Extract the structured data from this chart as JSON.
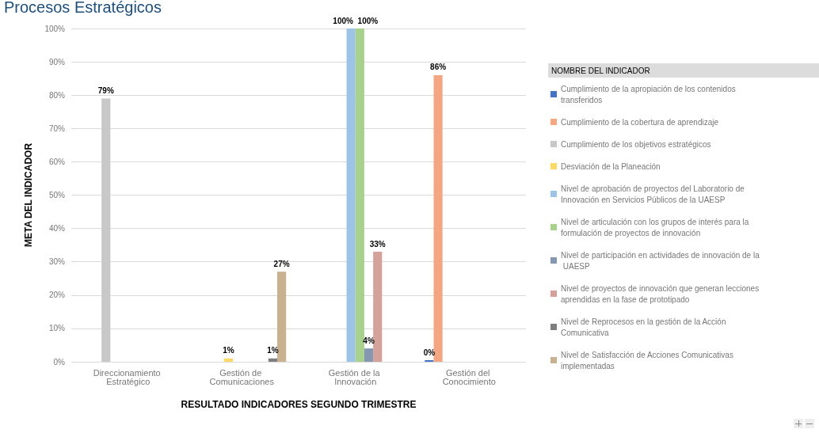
{
  "chart_data": {
    "type": "bar",
    "title": "Procesos Estratégicos",
    "xlabel": "RESULTADO INDICADORES SEGUNDO TRIMESTRE",
    "ylabel": "META DEL INDICADOR",
    "legend_title": "NOMBRE DEL INDICADOR",
    "categories": [
      "Direccionamiento Estratégico",
      "Gestión de Comunicaciones",
      "Gestión de la Innovación",
      "Gestión del Conocimiento"
    ],
    "series": [
      {
        "name": "Cumplimiento de la apropiación de los contenidos transferidos",
        "color": "#4472c4",
        "values": [
          null,
          null,
          null,
          0
        ],
        "value_labels": [
          null,
          null,
          null,
          "0%"
        ]
      },
      {
        "name": "Cumplimiento de la cobertura de aprendizaje",
        "color": "#f4a582",
        "values": [
          null,
          null,
          null,
          86
        ],
        "value_labels": [
          null,
          null,
          null,
          "86%"
        ]
      },
      {
        "name": "Cumplimiento de los objetivos estratégicos",
        "color": "#c8c8c8",
        "values": [
          79,
          null,
          null,
          null
        ],
        "value_labels": [
          "79%",
          null,
          null,
          null
        ]
      },
      {
        "name": "Desviación de la Planeación",
        "color": "#ffd966",
        "values": [
          null,
          1,
          null,
          null
        ],
        "value_labels": [
          null,
          "1%",
          null,
          null
        ]
      },
      {
        "name": "Nivel de aprobación de proyectos del Laboratorio de Innovación en Servicios Públicos de la UAESP",
        "color": "#9dc3e6",
        "values": [
          null,
          null,
          100,
          null
        ],
        "value_labels": [
          null,
          null,
          "100%",
          null
        ]
      },
      {
        "name": "Nivel de articulación con los grupos de interés para la formulación de proyectos de innovación",
        "color": "#a9d18e",
        "values": [
          null,
          null,
          100,
          null
        ],
        "value_labels": [
          null,
          null,
          "100%",
          null
        ]
      },
      {
        "name": "Nivel de participación en actividades de innovación de la UAESP",
        "color": "#8497b0",
        "values": [
          null,
          null,
          4,
          null
        ],
        "value_labels": [
          null,
          null,
          "4%",
          null
        ]
      },
      {
        "name": "Nivel de proyectos de innovación que generan lecciones aprendidas en la fase de prototipado",
        "color": "#d4a29a",
        "values": [
          null,
          null,
          33,
          null
        ],
        "value_labels": [
          null,
          null,
          "33%",
          null
        ]
      },
      {
        "name": "Nivel de Reprocesos en la gestión de la Acción Comunicativa",
        "color": "#7f7f7f",
        "values": [
          null,
          1,
          null,
          null
        ],
        "value_labels": [
          null,
          "1%",
          null,
          null
        ]
      },
      {
        "name": "Nivel de Satisfacción de Acciones Comunicativas implementadas",
        "color": "#c9b18f",
        "values": [
          null,
          27,
          null,
          null
        ],
        "value_labels": [
          null,
          "27%",
          null,
          null
        ]
      }
    ],
    "ylim": [
      0,
      100
    ],
    "yticks": [
      {
        "value": 0,
        "label": "0%"
      },
      {
        "value": 10,
        "label": "10%"
      },
      {
        "value": 20,
        "label": "20%"
      },
      {
        "value": 30,
        "label": "30%"
      },
      {
        "value": 40,
        "label": "40%"
      },
      {
        "value": 50,
        "label": "50%"
      },
      {
        "value": 60,
        "label": "60%"
      },
      {
        "value": 70,
        "label": "70%"
      },
      {
        "value": 80,
        "label": "80%"
      },
      {
        "value": 90,
        "label": "90%"
      },
      {
        "value": 100,
        "label": "100%"
      }
    ],
    "grid": "y",
    "legend": "right"
  }
}
